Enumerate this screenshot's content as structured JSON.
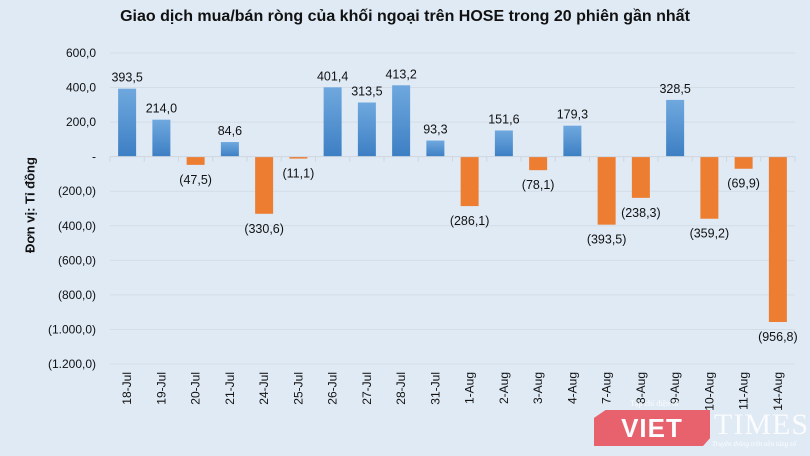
{
  "chart_data": {
    "type": "bar",
    "title": "Giao dịch mua/bán ròng của khối ngoại trên HOSE trong 20 phiên gần nhất",
    "xlabel": "",
    "ylabel": "Đơn vị: Tỉ đồng",
    "ylim": [
      -1200,
      600
    ],
    "yticks": [
      600,
      400,
      200,
      0,
      -200,
      -400,
      -600,
      -800,
      -1000,
      -1200
    ],
    "ytick_labels": [
      "600,0",
      "400,0",
      "200,0",
      "-",
      "(200,0)",
      "(400,0)",
      "(600,0)",
      "(800,0)",
      "(1.000,0)",
      "(1.200,0)"
    ],
    "grid": true,
    "legend": null,
    "categories": [
      "18-Jul",
      "19-Jul",
      "20-Jul",
      "21-Jul",
      "24-Jul",
      "25-Jul",
      "26-Jul",
      "27-Jul",
      "28-Jul",
      "31-Jul",
      "1-Aug",
      "2-Aug",
      "3-Aug",
      "4-Aug",
      "7-Aug",
      "8-Aug",
      "9-Aug",
      "10-Aug",
      "11-Aug",
      "14-Aug"
    ],
    "values": [
      393.5,
      214.0,
      -47.5,
      84.6,
      -330.6,
      -11.1,
      401.4,
      313.5,
      413.2,
      93.3,
      -286.1,
      151.6,
      -78.1,
      179.3,
      -393.5,
      -238.3,
      328.5,
      -359.2,
      -69.9,
      -956.8
    ],
    "value_labels": [
      "393,5",
      "214,0",
      "(47,5)",
      "84,6",
      "(330,6)",
      "(11,1)",
      "401,4",
      "313,5",
      "413,2",
      "93,3",
      "(286,1)",
      "151,6",
      "(78,1)",
      "179,3",
      "(393,5)",
      "(238,3)",
      "328,5",
      "(359,2)",
      "(69,9)",
      "(956,8)"
    ],
    "colors": {
      "positive": "#4a8fd4",
      "negative": "#ed7d31"
    }
  },
  "watermark": {
    "top": "Tạp chí điện tử",
    "brand_red": "VIET",
    "brand_white": "TIMES",
    "tagline": "Truyền thông trên nền tảng số"
  },
  "colors": {
    "background": "#dfeaf5",
    "grid": "#d4dde6"
  }
}
